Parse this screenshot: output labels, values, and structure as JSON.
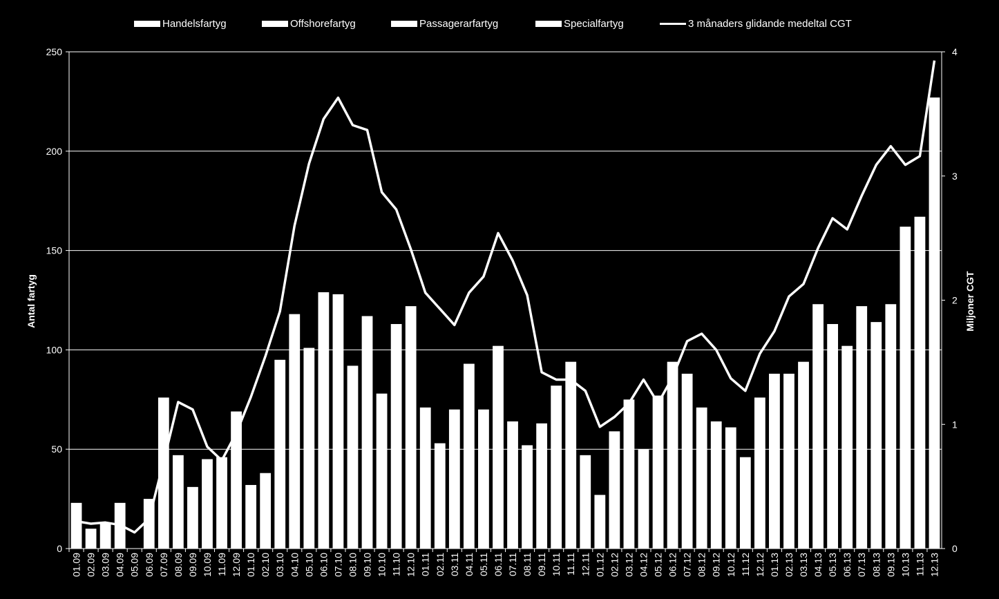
{
  "legend": {
    "handels": "Handelsfartyg",
    "offshore": "Offshorefartyg",
    "passagerar": "Passagerarfartyg",
    "special": "Specialfartyg",
    "line": "3 månaders glidande medeltal CGT"
  },
  "chart_data": {
    "type": "bar",
    "ylabel": "Antal fartyg",
    "y2label": "Miljoner CGT",
    "ylim": [
      0,
      250
    ],
    "yticks": [
      0,
      50,
      100,
      150,
      200,
      250
    ],
    "y2lim": [
      0,
      4
    ],
    "y2ticks": [
      0,
      1,
      2,
      3,
      4
    ],
    "grid": true,
    "legend_position": "top",
    "categories": [
      "01.09",
      "02.09",
      "03.09",
      "04.09",
      "05.09",
      "06.09",
      "07.09",
      "08.09",
      "09.09",
      "10.09",
      "11.09",
      "12.09",
      "01.10",
      "02.10",
      "03.10",
      "04.10",
      "05.10",
      "06.10",
      "07.10",
      "08.10",
      "09.10",
      "10.10",
      "11.10",
      "12.10",
      "01.11",
      "02.11",
      "03.11",
      "04.11",
      "05.11",
      "06.11",
      "07.11",
      "08.11",
      "09.11",
      "10.11",
      "11.11",
      "12.11",
      "01.12",
      "02.12",
      "03.12",
      "04.12",
      "05.12",
      "06.12",
      "07.12",
      "08.12",
      "09.12",
      "10.12",
      "11.12",
      "12.12",
      "01.13",
      "02.13",
      "03.13",
      "04.13",
      "05.13",
      "06.13",
      "07.13",
      "08.13",
      "09.13",
      "10.13",
      "11.13",
      "12.13"
    ],
    "series": [
      {
        "name": "Antal fartyg",
        "axis": "left",
        "values": [
          23,
          10,
          13,
          23,
          0,
          25,
          76,
          47,
          31,
          45,
          46,
          69,
          32,
          38,
          95,
          118,
          101,
          129,
          128,
          92,
          117,
          78,
          113,
          122,
          71,
          53,
          70,
          93,
          70,
          102,
          64,
          52,
          63,
          82,
          94,
          47,
          27,
          59,
          75,
          50,
          77,
          94,
          88,
          71,
          64,
          61,
          46,
          76,
          88,
          88,
          94,
          123,
          113,
          102,
          122,
          114,
          123,
          162,
          167,
          227
        ]
      },
      {
        "name": "3 månaders glidande medeltal CGT",
        "type": "line",
        "axis": "right",
        "values": [
          0.22,
          0.2,
          0.21,
          0.19,
          0.13,
          0.24,
          0.7,
          1.18,
          1.12,
          0.82,
          0.71,
          0.93,
          1.22,
          1.55,
          1.91,
          2.6,
          3.1,
          3.46,
          3.63,
          3.41,
          3.37,
          2.87,
          2.73,
          2.41,
          2.06,
          1.93,
          1.8,
          2.06,
          2.19,
          2.54,
          2.32,
          2.04,
          1.42,
          1.36,
          1.36,
          1.27,
          0.98,
          1.06,
          1.17,
          1.36,
          1.17,
          1.38,
          1.67,
          1.73,
          1.6,
          1.37,
          1.27,
          1.57,
          1.75,
          2.03,
          2.13,
          2.42,
          2.66,
          2.57,
          2.84,
          3.09,
          3.24,
          3.09,
          3.16,
          3.93
        ]
      }
    ]
  }
}
